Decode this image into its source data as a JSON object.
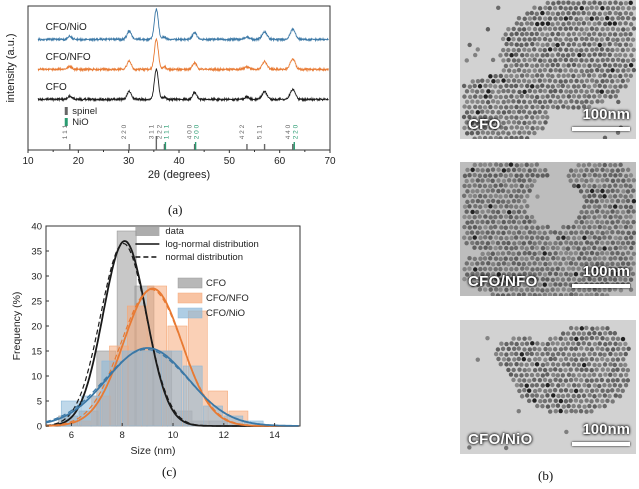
{
  "panel_labels": {
    "a": "(a)",
    "b": "(b)",
    "c": "(c)"
  },
  "colors": {
    "cfo": "#1a1a1a",
    "nfo": "#e87a33",
    "nio": "#3b78a6",
    "spinel": "#666666",
    "nio_ref": "#2a9d72"
  },
  "chart_data": [
    {
      "type": "line",
      "panel": "a",
      "xlabel": "2θ (degrees)",
      "ylabel": "intensity (a.u.)",
      "xlim": [
        10,
        70
      ],
      "xticks": [
        10,
        20,
        30,
        40,
        50,
        60,
        70
      ],
      "series": [
        {
          "name": "CFO/NiO",
          "color": "#3b78a6",
          "offset": 2
        },
        {
          "name": "CFO/NFO",
          "color": "#e87a33",
          "offset": 1
        },
        {
          "name": "CFO",
          "color": "#1a1a1a",
          "offset": 0
        }
      ],
      "peaks": [
        {
          "x": 18.3,
          "h": 0.1,
          "w": 0.6
        },
        {
          "x": 30.1,
          "h": 0.28,
          "w": 0.6
        },
        {
          "x": 35.5,
          "h": 1.0,
          "w": 0.55
        },
        {
          "x": 37.1,
          "h": 0.08,
          "w": 0.5
        },
        {
          "x": 43.1,
          "h": 0.22,
          "w": 0.6
        },
        {
          "x": 53.5,
          "h": 0.08,
          "w": 0.7
        },
        {
          "x": 57.0,
          "h": 0.26,
          "w": 0.7
        },
        {
          "x": 62.6,
          "h": 0.34,
          "w": 0.7
        }
      ],
      "legend": [
        {
          "label": "spinel",
          "color": "#666666"
        },
        {
          "label": "NiO",
          "color": "#2a9d72"
        }
      ],
      "reference_lines": [
        {
          "x": 18.3,
          "hkl": "1 1 1",
          "phase": "spinel"
        },
        {
          "x": 30.1,
          "hkl": "2 2 0",
          "phase": "spinel"
        },
        {
          "x": 35.5,
          "hkl": "3 1 1",
          "phase": "spinel"
        },
        {
          "x": 37.1,
          "hkl": "2 2 2",
          "phase": "spinel"
        },
        {
          "x": 37.3,
          "hkl": "1 1 1",
          "phase": "NiO"
        },
        {
          "x": 43.1,
          "hkl": "4 0 0",
          "phase": "spinel"
        },
        {
          "x": 43.3,
          "hkl": "2 0 0",
          "phase": "NiO"
        },
        {
          "x": 53.5,
          "hkl": "4 2 2",
          "phase": "spinel"
        },
        {
          "x": 57.0,
          "hkl": "5 1 1",
          "phase": "spinel"
        },
        {
          "x": 62.6,
          "hkl": "4 4 0",
          "phase": "spinel"
        },
        {
          "x": 62.9,
          "hkl": "2 2 0",
          "phase": "NiO"
        }
      ]
    },
    {
      "type": "bar",
      "panel": "c",
      "xlabel": "Size (nm)",
      "ylabel": "Frequency (%)",
      "xlim": [
        5,
        15
      ],
      "ylim": [
        0,
        40
      ],
      "xticks": [
        6,
        8,
        10,
        12,
        14
      ],
      "yticks": [
        0,
        5,
        10,
        15,
        20,
        25,
        30,
        35,
        40
      ],
      "legend_top": [
        {
          "label": "data",
          "style": "bar"
        },
        {
          "label": "log-normal distribution",
          "style": "solid"
        },
        {
          "label": "normal distribution",
          "style": "dashed"
        }
      ],
      "series": [
        {
          "name": "CFO",
          "color": "#9a9a9a",
          "bins": [
            [
              5.5,
              2
            ],
            [
              6.3,
              3
            ],
            [
              7.0,
              15
            ],
            [
              7.8,
              39
            ],
            [
              8.5,
              28
            ],
            [
              9.2,
              15
            ],
            [
              10.0,
              3
            ],
            [
              10.7,
              1
            ],
            [
              11.4,
              1
            ]
          ],
          "mu": 8.1,
          "sigma": 0.85,
          "amp": 37,
          "dash_mu": 8.05,
          "dash_sigma": 0.9,
          "dash_amp": 36.5
        },
        {
          "name": "CFO/NFO",
          "color": "#f5a97a",
          "bins": [
            [
              6.0,
              1
            ],
            [
              6.8,
              6
            ],
            [
              7.5,
              16
            ],
            [
              8.2,
              24
            ],
            [
              9.0,
              28
            ],
            [
              9.8,
              20
            ],
            [
              10.6,
              23
            ],
            [
              11.4,
              7
            ],
            [
              12.2,
              3
            ]
          ],
          "mu": 9.2,
          "sigma": 1.15,
          "amp": 27.5,
          "dash_mu": 9.15,
          "dash_sigma": 1.2,
          "dash_amp": 27.3
        },
        {
          "name": "CFO/NiO",
          "color": "#8bb8d9",
          "bins": [
            [
              5.6,
              5
            ],
            [
              6.4,
              6
            ],
            [
              7.2,
              13
            ],
            [
              8.0,
              15
            ],
            [
              8.8,
              15
            ],
            [
              9.6,
              15
            ],
            [
              10.4,
              12
            ],
            [
              11.2,
              4
            ],
            [
              12.0,
              2
            ],
            [
              12.8,
              1
            ]
          ],
          "mu": 9.0,
          "sigma": 1.6,
          "amp": 15.6,
          "dash_mu": 8.95,
          "dash_sigma": 1.65,
          "dash_amp": 15.3
        }
      ]
    }
  ],
  "tem_images": [
    {
      "label": "CFO",
      "scale": "100nm"
    },
    {
      "label": "CFO/NFO",
      "scale": "100nm"
    },
    {
      "label": "CFO/NiO",
      "scale": "100nm"
    }
  ]
}
